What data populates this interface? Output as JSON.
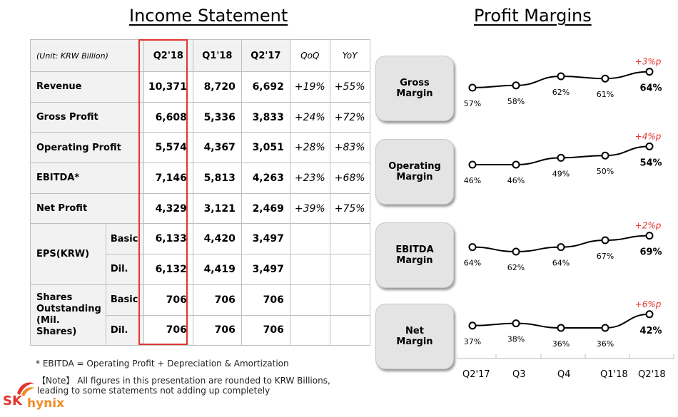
{
  "left_heading": "Income Statement",
  "right_heading": "Profit Margins",
  "table": {
    "unit": "(Unit: KRW Billion)",
    "headers": [
      "Q2'18",
      "Q1'18",
      "Q2'17"
    ],
    "pct_headers": [
      "QoQ",
      "YoY"
    ],
    "rows": [
      {
        "label": "Revenue",
        "q2_18": "10,371",
        "q1_18": "8,720",
        "q2_17": "6,692",
        "qoq": "+19%",
        "yoy": "+55%"
      },
      {
        "label": "Gross Profit",
        "q2_18": "6,608",
        "q1_18": "5,336",
        "q2_17": "3,833",
        "qoq": "+24%",
        "yoy": "+72%"
      },
      {
        "label": "Operating Profit",
        "q2_18": "5,574",
        "q1_18": "4,367",
        "q2_17": "3,051",
        "qoq": "+28%",
        "yoy": "+83%"
      },
      {
        "label": "EBITDA*",
        "q2_18": "7,146",
        "q1_18": "5,813",
        "q2_17": "4,263",
        "qoq": "+23%",
        "yoy": "+68%"
      },
      {
        "label": "Net Profit",
        "q2_18": "4,329",
        "q1_18": "3,121",
        "q2_17": "2,469",
        "qoq": "+39%",
        "yoy": "+75%"
      }
    ],
    "eps": {
      "label": "EPS(KRW)",
      "basic": {
        "label": "Basic",
        "q2_18": "6,133",
        "q1_18": "4,420",
        "q2_17": "3,497"
      },
      "dil": {
        "label": "Dil.",
        "q2_18": "6,132",
        "q1_18": "4,419",
        "q2_17": "3,497"
      }
    },
    "shares": {
      "label_lines": [
        "Shares",
        "Outstanding",
        "(Mil.",
        "Shares)"
      ],
      "basic": {
        "label": "Basic",
        "q2_18": "706",
        "q1_18": "706",
        "q2_17": "706"
      },
      "dil": {
        "label": "Dil.",
        "q2_18": "706",
        "q1_18": "706",
        "q2_17": "706"
      }
    }
  },
  "footnote_ebitda": "* EBITDA = Operating Profit + Depreciation & Amortization",
  "footnote_note": "【Note】 All figures in this presentation are rounded to KRW Billions, leading to some statements not adding up completely",
  "logo": {
    "sk": "SK",
    "hynix": "hynix",
    "accent": "#e3342f",
    "accent2": "#f28c28"
  },
  "colors": {
    "highlight": "#e3342f",
    "change_label": "#e3342f"
  },
  "margin_boxes": [
    {
      "line1": "Gross",
      "line2": "Margin"
    },
    {
      "line1": "Operating",
      "line2": "Margin"
    },
    {
      "line1": "EBITDA",
      "line2": "Margin"
    },
    {
      "line1": "Net",
      "line2": "Margin"
    }
  ],
  "chart_data": {
    "type": "line",
    "categories": [
      "Q2'17",
      "Q3",
      "Q4",
      "Q1'18",
      "Q2'18"
    ],
    "series": [
      {
        "name": "Gross Margin",
        "values": [
          57,
          58,
          62,
          61,
          64
        ],
        "change": "+3%p"
      },
      {
        "name": "Operating Margin",
        "values": [
          46,
          46,
          49,
          50,
          54
        ],
        "change": "+4%p"
      },
      {
        "name": "EBITDA Margin",
        "values": [
          64,
          62,
          64,
          67,
          69
        ],
        "change": "+2%p"
      },
      {
        "name": "Net Margin",
        "values": [
          37,
          38,
          36,
          36,
          42
        ],
        "change": "+6%p"
      }
    ],
    "value_suffix": "%",
    "grid": false,
    "legend": "none"
  }
}
